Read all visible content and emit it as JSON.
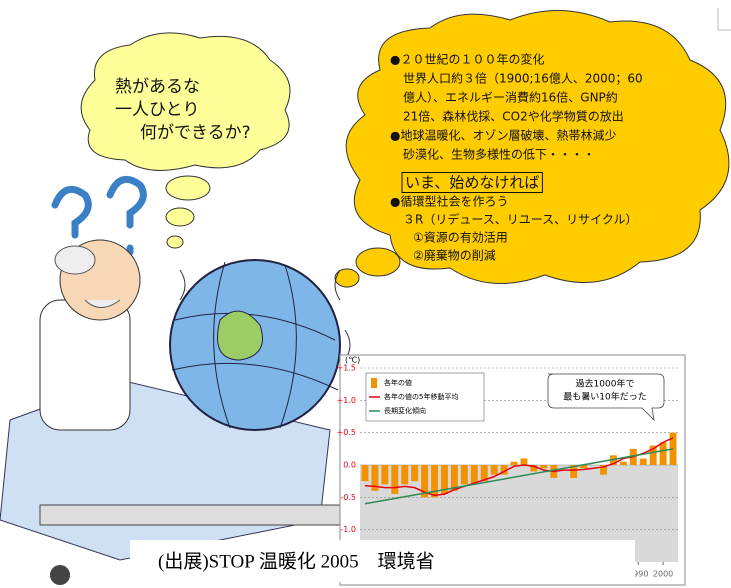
{
  "speech_left": {
    "lines": [
      "熱があるな",
      "一人ひとり",
      "何ができるか?"
    ]
  },
  "speech_right": {
    "lines": [
      "●２０世紀の１００年の変化",
      "世界人口約３倍（1900;16億人、2000；60",
      "億人）、エネルギー消費約16倍、GNP約",
      "21倍、森林伐採、CO2や化学物質の放出",
      "●地球温暖化、オゾン層破壊、熱帯林減少",
      "砂漠化、生物多様性の低下・・・・"
    ],
    "heading": "いま、始めなければ",
    "lines2": [
      "●循環型社会を作ろう",
      "３R（リデュース、リユース、リサイクル）",
      "①資源の有効活用",
      "②廃棄物の削減"
    ]
  },
  "chart_data": {
    "type": "bar",
    "unit": "(℃)",
    "annotation": [
      "過去1000年で",
      "最も暑い10年だった"
    ],
    "x": [
      1880,
      1884,
      1888,
      1892,
      1896,
      1900,
      1904,
      1908,
      1912,
      1916,
      1920,
      1924,
      1928,
      1932,
      1936,
      1940,
      1944,
      1948,
      1952,
      1956,
      1960,
      1964,
      1968,
      1972,
      1976,
      1980,
      1984,
      1988,
      1992,
      1996,
      2000,
      2004
    ],
    "series": [
      {
        "name": "各年の値",
        "color": "#f39200",
        "values": [
          -0.25,
          -0.4,
          -0.3,
          -0.45,
          -0.3,
          -0.25,
          -0.5,
          -0.5,
          -0.45,
          -0.4,
          -0.3,
          -0.3,
          -0.25,
          -0.15,
          -0.15,
          0.05,
          0.1,
          -0.1,
          -0.05,
          -0.2,
          0.0,
          -0.2,
          -0.05,
          0.0,
          -0.15,
          0.15,
          0.05,
          0.25,
          0.1,
          0.3,
          0.35,
          0.5
        ]
      },
      {
        "name": "各年の値の5年移動平均",
        "color": "#e60012",
        "type": "line",
        "values": [
          -0.32,
          -0.33,
          -0.35,
          -0.35,
          -0.33,
          -0.35,
          -0.42,
          -0.47,
          -0.45,
          -0.38,
          -0.33,
          -0.28,
          -0.23,
          -0.18,
          -0.1,
          -0.02,
          0.0,
          -0.02,
          -0.08,
          -0.1,
          -0.08,
          -0.08,
          -0.07,
          -0.05,
          -0.03,
          0.02,
          0.1,
          0.13,
          0.18,
          0.25,
          0.35,
          0.42
        ]
      },
      {
        "name": "長期変化傾向",
        "color": "#2e8b57",
        "type": "line",
        "x": [
          1880,
          2004
        ],
        "values": [
          -0.6,
          0.25
        ]
      }
    ],
    "xlim": [
      1878,
      2006
    ],
    "ylim": [
      -1.5,
      1.5
    ],
    "yticks": [
      {
        "value": 1.5,
        "label": "+1.5"
      },
      {
        "value": 1,
        "label": "+1.0"
      },
      {
        "value": 0.5,
        "label": "+0.5"
      },
      {
        "value": 0,
        "label": "0.0"
      },
      -0.5,
      {
        "value": -1,
        "label": "-1.0"
      }
    ],
    "xticks": [
      1990,
      2000
    ],
    "grid": true
  },
  "caption": "(出展)STOP 温暖化 2005　環境省"
}
